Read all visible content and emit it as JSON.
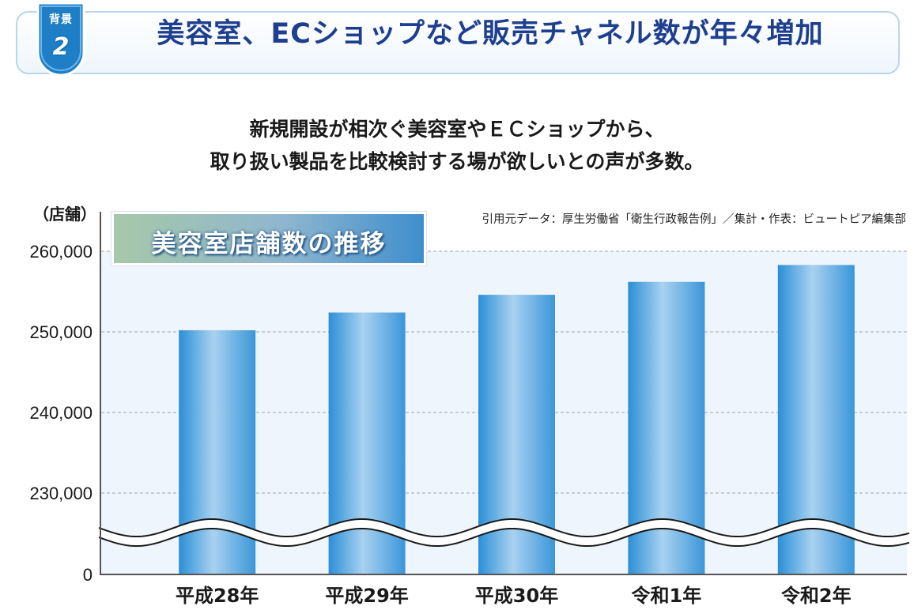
{
  "header": {
    "badge_label": "背景",
    "badge_number": "2",
    "title": "美容室、ECショップなど販売チャネル数が年々増加"
  },
  "subtitle": {
    "line1": "新規開設が相次ぐ美容室やＥＣショップから、",
    "line2": "取り扱い製品を比較検討する場が欲しいとの声が多数。"
  },
  "colors": {
    "bar_light": "#a8d2f0",
    "bar_dark": "#2b8fd6",
    "plot_band": "#eef5fc",
    "title_blue": "#1e3f8f"
  },
  "chart_data": {
    "type": "bar",
    "title": "美容室店舗数の推移",
    "unit_label": "（店舗）",
    "source": "引用元データ：厚生労働省「衛生行政報告例」／集計・作表：ビュートピア編集部",
    "categories": [
      "平成28年",
      "平成29年",
      "平成30年",
      "令和1年",
      "令和2年"
    ],
    "values": [
      250200,
      252400,
      254600,
      256200,
      258300
    ],
    "y_ticks": [
      260000,
      250000,
      240000,
      230000,
      0
    ],
    "y_tick_labels": [
      "260,000",
      "250,000",
      "240,000",
      "230,000",
      "0"
    ],
    "ylim": [
      0,
      262000
    ],
    "axis_break": true,
    "grid": "dashed horizontal"
  }
}
